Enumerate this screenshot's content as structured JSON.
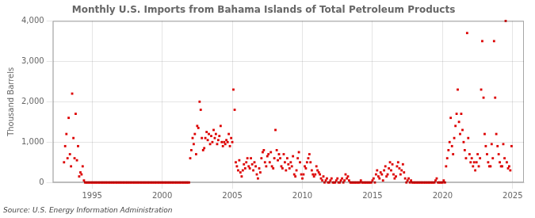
{
  "chart_data": {
    "type": "scatter",
    "title": "Monthly U.S. Imports from Bahama Islands of Total Petroleum Products",
    "y_label": "Thousand Barrels",
    "annotation": "Source: U.S. Energy Information Administration",
    "color": "#dd0000",
    "marker": "square",
    "grid": true,
    "xlim": [
      1992.2,
      2025.8
    ],
    "xticks": [
      1995,
      2000,
      2005,
      2010,
      2015,
      2020,
      2025
    ],
    "ylim": [
      0,
      4000
    ],
    "yticks": [
      0,
      {
        "value": 1000,
        "label": "1,000"
      },
      {
        "value": 2000,
        "label": "2,000"
      },
      {
        "value": 3000,
        "label": "3,000"
      },
      {
        "value": 4000,
        "label": "4,000"
      }
    ],
    "x": [
      1993.0,
      1993.08,
      1993.17,
      1993.25,
      1993.33,
      1993.42,
      1993.5,
      1993.58,
      1993.67,
      1993.75,
      1993.83,
      1993.92,
      1994.0,
      1994.08,
      1994.17,
      1994.25,
      1994.33,
      1994.42,
      1994.5,
      1994.58,
      1994.67,
      1994.75,
      1994.83,
      1994.92,
      1995.0,
      1995.08,
      1995.17,
      1995.25,
      1995.33,
      1995.42,
      1995.5,
      1995.58,
      1995.67,
      1995.75,
      1995.83,
      1995.92,
      1996.0,
      1996.08,
      1996.17,
      1996.25,
      1996.33,
      1996.42,
      1996.5,
      1996.58,
      1996.67,
      1996.75,
      1996.83,
      1996.92,
      1997.0,
      1997.08,
      1997.17,
      1997.25,
      1997.33,
      1997.42,
      1997.5,
      1997.58,
      1997.67,
      1997.75,
      1997.83,
      1997.92,
      1998.0,
      1998.08,
      1998.17,
      1998.25,
      1998.33,
      1998.42,
      1998.5,
      1998.58,
      1998.67,
      1998.75,
      1998.83,
      1998.92,
      1999.0,
      1999.08,
      1999.17,
      1999.25,
      1999.33,
      1999.42,
      1999.5,
      1999.58,
      1999.67,
      1999.75,
      1999.83,
      1999.92,
      2000.0,
      2000.08,
      2000.17,
      2000.25,
      2000.33,
      2000.42,
      2000.5,
      2000.58,
      2000.67,
      2000.75,
      2000.83,
      2000.92,
      2001.0,
      2001.08,
      2001.17,
      2001.25,
      2001.33,
      2001.42,
      2001.5,
      2001.58,
      2001.67,
      2001.75,
      2001.83,
      2001.92,
      2002.0,
      2002.08,
      2002.17,
      2002.25,
      2002.33,
      2002.42,
      2002.5,
      2002.58,
      2002.67,
      2002.75,
      2002.83,
      2002.92,
      2003.0,
      2003.08,
      2003.17,
      2003.25,
      2003.33,
      2003.42,
      2003.5,
      2003.58,
      2003.67,
      2003.75,
      2003.83,
      2003.92,
      2004.0,
      2004.08,
      2004.17,
      2004.25,
      2004.33,
      2004.42,
      2004.5,
      2004.58,
      2004.67,
      2004.75,
      2004.83,
      2004.92,
      2005.0,
      2005.08,
      2005.17,
      2005.25,
      2005.33,
      2005.42,
      2005.5,
      2005.58,
      2005.67,
      2005.75,
      2005.83,
      2005.92,
      2006.0,
      2006.08,
      2006.17,
      2006.25,
      2006.33,
      2006.42,
      2006.5,
      2006.58,
      2006.67,
      2006.75,
      2006.83,
      2006.92,
      2007.0,
      2007.08,
      2007.17,
      2007.25,
      2007.33,
      2007.42,
      2007.5,
      2007.58,
      2007.67,
      2007.75,
      2007.83,
      2007.92,
      2008.0,
      2008.08,
      2008.17,
      2008.25,
      2008.33,
      2008.42,
      2008.5,
      2008.58,
      2008.67,
      2008.75,
      2008.83,
      2008.92,
      2009.0,
      2009.08,
      2009.17,
      2009.25,
      2009.33,
      2009.42,
      2009.5,
      2009.58,
      2009.67,
      2009.75,
      2009.83,
      2009.92,
      2010.0,
      2010.08,
      2010.17,
      2010.25,
      2010.33,
      2010.42,
      2010.5,
      2010.58,
      2010.67,
      2010.75,
      2010.83,
      2010.92,
      2011.0,
      2011.08,
      2011.17,
      2011.25,
      2011.33,
      2011.42,
      2011.5,
      2011.58,
      2011.67,
      2011.75,
      2011.83,
      2011.92,
      2012.0,
      2012.08,
      2012.17,
      2012.25,
      2012.33,
      2012.42,
      2012.5,
      2012.58,
      2012.67,
      2012.75,
      2012.83,
      2012.92,
      2013.0,
      2013.08,
      2013.17,
      2013.25,
      2013.33,
      2013.42,
      2013.5,
      2013.58,
      2013.67,
      2013.75,
      2013.83,
      2013.92,
      2014.0,
      2014.08,
      2014.17,
      2014.25,
      2014.33,
      2014.42,
      2014.5,
      2014.58,
      2014.67,
      2014.75,
      2014.83,
      2014.92,
      2015.0,
      2015.08,
      2015.17,
      2015.25,
      2015.33,
      2015.42,
      2015.5,
      2015.58,
      2015.67,
      2015.75,
      2015.83,
      2015.92,
      2016.0,
      2016.08,
      2016.17,
      2016.25,
      2016.33,
      2016.42,
      2016.5,
      2016.58,
      2016.67,
      2016.75,
      2016.83,
      2016.92,
      2017.0,
      2017.08,
      2017.17,
      2017.25,
      2017.33,
      2017.42,
      2017.5,
      2017.58,
      2017.67,
      2017.75,
      2017.83,
      2017.92,
      2018.0,
      2018.08,
      2018.17,
      2018.25,
      2018.33,
      2018.42,
      2018.5,
      2018.58,
      2018.67,
      2018.75,
      2018.83,
      2018.92,
      2019.0,
      2019.08,
      2019.17,
      2019.25,
      2019.33,
      2019.42,
      2019.5,
      2019.58,
      2019.67,
      2019.75,
      2019.83,
      2019.92,
      2020.0,
      2020.08,
      2020.17,
      2020.25,
      2020.33,
      2020.42,
      2020.5,
      2020.58,
      2020.67,
      2020.75,
      2020.83,
      2020.92,
      2021.0,
      2021.08,
      2021.17,
      2021.25,
      2021.33,
      2021.42,
      2021.5,
      2021.58,
      2021.67,
      2021.75,
      2021.83,
      2021.92,
      2022.0,
      2022.08,
      2022.17,
      2022.25,
      2022.33,
      2022.42,
      2022.5,
      2022.58,
      2022.67,
      2022.75,
      2022.83,
      2022.92,
      2023.0,
      2023.08,
      2023.17,
      2023.25,
      2023.33,
      2023.42,
      2023.5,
      2023.58,
      2023.67,
      2023.75,
      2023.83,
      2023.92,
      2024.0,
      2024.08,
      2024.17,
      2024.25,
      2024.33,
      2024.42,
      2024.5,
      2024.58,
      2024.67,
      2024.75,
      2024.83,
      2024.92
    ],
    "values": [
      500,
      900,
      1200,
      600,
      1600,
      700,
      400,
      2200,
      1100,
      600,
      1700,
      550,
      900,
      150,
      250,
      200,
      400,
      50,
      0,
      0,
      0,
      0,
      0,
      0,
      0,
      0,
      0,
      0,
      0,
      0,
      0,
      0,
      0,
      0,
      0,
      0,
      0,
      0,
      0,
      0,
      0,
      0,
      0,
      0,
      0,
      0,
      0,
      0,
      0,
      0,
      0,
      0,
      0,
      0,
      0,
      0,
      0,
      0,
      0,
      0,
      0,
      0,
      0,
      0,
      0,
      0,
      0,
      0,
      0,
      0,
      0,
      0,
      0,
      0,
      0,
      0,
      0,
      0,
      0,
      0,
      0,
      0,
      0,
      0,
      0,
      0,
      0,
      0,
      0,
      0,
      0,
      0,
      0,
      0,
      0,
      0,
      0,
      0,
      0,
      0,
      0,
      0,
      0,
      0,
      0,
      0,
      0,
      0,
      600,
      800,
      1100,
      950,
      1200,
      700,
      1400,
      1350,
      2000,
      1800,
      1100,
      800,
      850,
      1100,
      1250,
      1050,
      1200,
      950,
      1150,
      1000,
      1300,
      1100,
      1200,
      950,
      1050,
      1150,
      1400,
      1000,
      900,
      1000,
      950,
      1050,
      1000,
      1200,
      900,
      1100,
      1000,
      2300,
      1800,
      500,
      400,
      300,
      550,
      250,
      150,
      300,
      450,
      350,
      500,
      600,
      400,
      350,
      600,
      450,
      300,
      500,
      400,
      200,
      100,
      350,
      250,
      600,
      750,
      800,
      500,
      400,
      650,
      700,
      500,
      750,
      400,
      350,
      600,
      1300,
      800,
      550,
      700,
      600,
      400,
      350,
      700,
      500,
      300,
      600,
      450,
      350,
      500,
      400,
      650,
      200,
      150,
      300,
      600,
      750,
      500,
      200,
      100,
      200,
      400,
      350,
      500,
      600,
      700,
      500,
      300,
      200,
      150,
      200,
      400,
      300,
      250,
      200,
      100,
      50,
      150,
      0,
      50,
      100,
      0,
      0,
      50,
      100,
      0,
      0,
      0,
      50,
      100,
      0,
      0,
      50,
      100,
      0,
      50,
      200,
      100,
      150,
      50,
      0,
      0,
      0,
      0,
      0,
      0,
      0,
      0,
      0,
      50,
      0,
      0,
      0,
      0,
      0,
      0,
      0,
      0,
      0,
      50,
      100,
      0,
      200,
      300,
      150,
      100,
      250,
      200,
      50,
      300,
      400,
      150,
      200,
      350,
      500,
      300,
      450,
      200,
      100,
      150,
      400,
      500,
      350,
      200,
      300,
      450,
      250,
      100,
      0,
      50,
      100,
      0,
      50,
      0,
      0,
      0,
      0,
      0,
      0,
      0,
      0,
      0,
      0,
      0,
      0,
      0,
      0,
      0,
      0,
      0,
      0,
      0,
      0,
      50,
      100,
      0,
      0,
      0,
      0,
      0,
      50,
      0,
      400,
      600,
      800,
      1000,
      1600,
      900,
      700,
      1100,
      1400,
      1700,
      2300,
      1500,
      1200,
      1700,
      1300,
      1000,
      800,
      600,
      3700,
      1100,
      700,
      500,
      600,
      400,
      500,
      300,
      500,
      700,
      400,
      600,
      2300,
      3500,
      2100,
      1200,
      900,
      700,
      500,
      400,
      400,
      950,
      600,
      3500,
      2100,
      1200,
      900,
      700,
      500,
      400,
      400,
      950,
      600,
      4000,
      500,
      350,
      400,
      300,
      900
    ]
  }
}
